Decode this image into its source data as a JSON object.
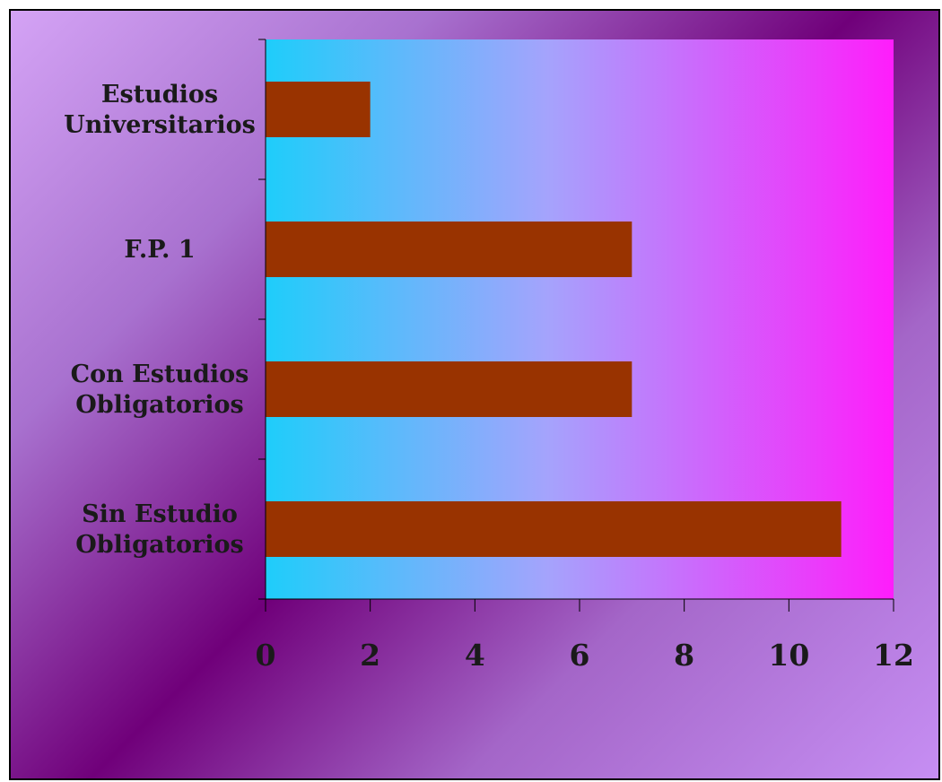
{
  "chart_data": {
    "type": "bar",
    "orientation": "horizontal",
    "categories": [
      "Sin Estudio Obligatorios",
      "Con Estudios Obligatorios",
      "F.P. 1",
      "Estudios Universitarios"
    ],
    "category_label_lines": [
      [
        "Sin Estudio",
        "Obligatorios"
      ],
      [
        "Con Estudios",
        "Obligatorios"
      ],
      [
        "F.P. 1"
      ],
      [
        "Estudios",
        "Universitarios"
      ]
    ],
    "values": [
      11,
      7,
      7,
      2
    ],
    "xlim": [
      0,
      12
    ],
    "xticks": [
      "0",
      "2",
      "4",
      "6",
      "8",
      "10",
      "12"
    ],
    "title": "",
    "xlabel": "",
    "ylabel": "",
    "grid": false,
    "legend": "none",
    "colors": {
      "bar": "#993300",
      "plot_gradient_start": "#1ecdfa",
      "plot_gradient_end": "#ff1dfb",
      "axis": "#000000"
    }
  }
}
